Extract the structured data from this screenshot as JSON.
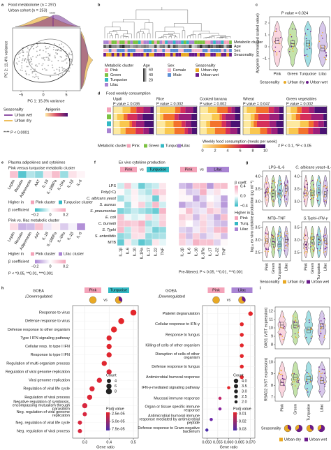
{
  "figure": {
    "a": {
      "label": "a",
      "title1": "Food metabolome (n = 297)",
      "title2": "Urban cohort (n = 253)",
      "stars": "****",
      "ylabel": "PC 2: 11.4% variance",
      "xlabel": "PC 1: 15.3% variance",
      "xticks": [
        "−5",
        "0",
        "5"
      ],
      "legend_title": "Seasonality",
      "legend": [
        "Urban wet",
        "Urban dry"
      ],
      "color_title": "Apigenin",
      "note": "**** P < 0.0001"
    },
    "b": {
      "label": "b",
      "tracks": [
        "Metabolic cluster",
        "Age",
        "Sex",
        "Seasonality"
      ],
      "cluster_title": "Metabolic cluster",
      "clusters": [
        "Pink",
        "Green",
        "Turquoise",
        "Lilac"
      ],
      "age_title": "Age",
      "ages": [
        "60",
        "40",
        "20"
      ],
      "sex_title": "Sex",
      "sexes": [
        "Female",
        "Male"
      ],
      "season_title": "Seasonality",
      "seasons": [
        "Urban dry",
        "Urban wet"
      ]
    },
    "c": {
      "label": "c",
      "p": "P value = 0.024",
      "ylabel": "Apigenin (normalized scaled value)",
      "yticks": [
        "2",
        "1",
        "0",
        "−1"
      ],
      "cats": [
        "Pink",
        "Green",
        "Turquoise",
        "Lilac"
      ],
      "legend_title": "Seasonality",
      "legend": [
        "Urban dry",
        "Urban wet"
      ]
    },
    "d": {
      "label": "d",
      "title": "Food weekly consumption",
      "foods": [
        {
          "name": "Ugali",
          "p": "P value = 0.036"
        },
        {
          "name": "Rice",
          "p": "P value = 0.002"
        },
        {
          "name": "Cooked banana",
          "p": "P value = 0.002"
        },
        {
          "name": "Wheat",
          "p": "P value = 0.047"
        },
        {
          "name": "Green vegetables",
          "p": "P value = 0.002"
        }
      ],
      "cluster_title": "Metabolic cluster",
      "clusters": [
        "Pink",
        "Green",
        "Turquoise",
        "Lilac"
      ],
      "scale_title": "Weekly food consumption (meals per week)",
      "scale_ticks": [
        "0",
        "2",
        "4",
        "6",
        "8",
        "10"
      ],
      "note": "# P < 0.1, *P < 0.05"
    },
    "e": {
      "label": "e",
      "title": "Plasma adipokines and cytokines",
      "sub1": "Pink versus turquoise metabolic cluster",
      "cols": [
        "Leptin",
        "Resistin",
        "Adiponectin",
        "AAT",
        "IL-18",
        "IL-18BPa",
        "IL-1Ra",
        "IL-1β",
        "IL-6"
      ],
      "higher": "Higher in",
      "hi1": [
        "Pink cluster",
        "Turquoise cluster"
      ],
      "beta": "β coefficient",
      "beta_ticks": [
        "−0.2",
        "0",
        "0.2"
      ],
      "sub2": "Pink vs. lilac metabolic cluster",
      "hi2": [
        "Pink cluster",
        "Lilac cluster"
      ],
      "note": "P < *0.05, **0.01, ***0.001"
    },
    "f": {
      "label": "f",
      "title": "Ex vivo cytokine production",
      "left": [
        "Pink",
        "vs",
        "Turquoise"
      ],
      "right": [
        "Pink",
        "vs",
        "Lilac"
      ],
      "rows": [
        "LPS",
        "Poly(I:C)",
        "C. albicans yeast",
        "S. aureus",
        "S. pneumoniae",
        "E. coli",
        "C. burnetii",
        "S. Typhi",
        "S. enteritidis",
        "MTB"
      ],
      "cols": [
        "IL-1β",
        "IL-6",
        "IL-10",
        "IL-1Ra",
        "IL-17",
        "IL-22",
        "TNF"
      ],
      "beta": "β coeff.",
      "beta_ticks": [
        "0.4",
        "0.0",
        "−0.4"
      ],
      "higher": "Higher in",
      "hi": [
        "Pink",
        "Turq.",
        "Lilac"
      ],
      "note": "Pre-filtered, P < 0.05, **0.01, ***0.001"
    },
    "g": {
      "label": "g",
      "panels": [
        "LPS–IL-6",
        "C. albicans yeast–IL-1β",
        "MTB–TNF",
        "S.Typhi–IFN-γ"
      ],
      "ylabel": "log₁₀ ex vivo cytokine production (pg ml⁻¹)",
      "yticks_top": [
        "4.0",
        "3.5",
        "3.0"
      ],
      "yticks_bottom": [
        "3.5",
        "3.0",
        "2.5"
      ],
      "cats": [
        "Pink",
        "Green",
        "Turquoise",
        "Lilac"
      ],
      "legend_title": "Seasonality",
      "legend": [
        "Urban dry",
        "Urban wet"
      ]
    },
    "h": {
      "label": "h"
    },
    "i": {
      "label": "i",
      "panels": [
        {
          "ylabel": "OAS1 (VST expression)",
          "yticks": [
            "12",
            "11",
            "10",
            "9",
            "8"
          ]
        },
        {
          "ylabel": "RSAD2 (VST expression)",
          "yticks": [
            "10",
            "9",
            "8",
            "7"
          ]
        }
      ],
      "cats": [
        "Pink",
        "Green",
        "Turquoise",
        "Lilac"
      ],
      "legend_title": "Seasonality",
      "legend": [
        "Urban dry",
        "Urban wet"
      ]
    }
  },
  "chart_data": [
    {
      "type": "dot",
      "title": "GOEA",
      "subtitle": "↓Downregulated",
      "groups": [
        "Pink",
        "vs",
        "Turquoise"
      ],
      "categories": [
        "Response to virus",
        "Defense response to virus",
        "Defense response to other organism",
        "Type I IFN signaling pathway",
        "Cellular resp. to type I IFN",
        "Response to type I IFN",
        "Regulation of multi-organism process",
        "Regulation of viral genome replication",
        "Viral genome replication",
        "Regulation of viral life cycle",
        "Regulation of viral process",
        "Negative regulation of symbiosis, encompassing mutualism through parasitism",
        "Neg. regulation of viral genome replication",
        "Neg. regulation of viral life cycle",
        "Neg. regulation of viral process"
      ],
      "values": [
        0.5,
        0.45,
        0.42,
        0.4,
        0.4,
        0.4,
        0.38,
        0.4,
        0.36,
        0.33,
        0.32,
        0.3,
        0.3,
        0.28,
        0.28
      ],
      "sizes": [
        8,
        8,
        8,
        6,
        6,
        6,
        6,
        6,
        6,
        6,
        6,
        6,
        4,
        4,
        4
      ],
      "colors": [
        "#e3262b",
        "#e3262b",
        "#e3262b",
        "#e0262f",
        "#e0262f",
        "#e0262f",
        "#e0262f",
        "#dd2636",
        "#dd2636",
        "#dd2636",
        "#dd2636",
        "#d8263e",
        "#d8263e",
        "#d8263e",
        "#d8263e"
      ],
      "xlabel": "Gene ratio",
      "xlim": [
        0.25,
        0.52
      ],
      "xticks": [
        0.3,
        0.4,
        0.5
      ],
      "size_title": "Count",
      "size_legend": [
        4,
        6,
        8
      ],
      "color_title": "Padj value",
      "color_legend": [
        {
          "value": 2.5e-05,
          "label": "2.5e-05"
        },
        {
          "value": 5e-05,
          "label": "5.0e-05"
        },
        {
          "value": 7.5e-05,
          "label": "7.5e-05"
        }
      ]
    },
    {
      "type": "dot",
      "title": "GOEA",
      "subtitle": "↓Downregulated",
      "groups": [
        "Pink",
        "vs",
        "Lilac"
      ],
      "categories": [
        "Platelet degranulation",
        "Cellular response to IFN-γ",
        "Response to fungus",
        "Killing of cells of other organism",
        "Disruption of cells of other organism",
        "Defense response to fungus",
        "Antimicrobial humoral response",
        "IFN-γ-mediated signaling pathway",
        "Mucosal immune response",
        "Organ or tissue specific immune response",
        "Antimicrobial humoral immune response mediated by antimicrobial peptide",
        "Defense response to Gram-negative bacterium"
      ],
      "values": [
        0.07,
        0.066,
        0.066,
        0.066,
        0.066,
        0.066,
        0.066,
        0.06,
        0.056,
        0.056,
        0.052,
        0.05
      ],
      "sizes": [
        4,
        3,
        3,
        3,
        3,
        3,
        3,
        2,
        2,
        2,
        2,
        2
      ],
      "colors": [
        "#e3262b",
        "#e3262b",
        "#e3262b",
        "#e3262b",
        "#e3262b",
        "#e3262b",
        "#e3262b",
        "#e3262b",
        "#c2246a",
        "#8a24a0",
        "#6a25a8",
        "#4b2eab"
      ],
      "xlabel": "Gene ratio",
      "xlim": [
        0.048,
        0.072
      ],
      "xticks": [
        {
          "value": 0.05,
          "label": "0.050"
        },
        {
          "value": 0.055,
          "label": "0.055"
        },
        {
          "value": 0.06,
          "label": "0.060"
        },
        {
          "value": 0.065,
          "label": "0.065"
        },
        {
          "value": 0.07,
          "label": "0.070"
        }
      ],
      "size_title": "Count",
      "size_legend": [
        {
          "value": 4,
          "label": "4.0"
        },
        {
          "value": 3.5,
          "label": "3.5"
        },
        {
          "value": 3,
          "label": "3.0"
        },
        {
          "value": 2.5,
          "label": "2.5"
        },
        {
          "value": 2,
          "label": "2.0"
        }
      ],
      "color_title": "Padj value",
      "color_legend": [
        0.01,
        0.02,
        0.03
      ]
    }
  ]
}
